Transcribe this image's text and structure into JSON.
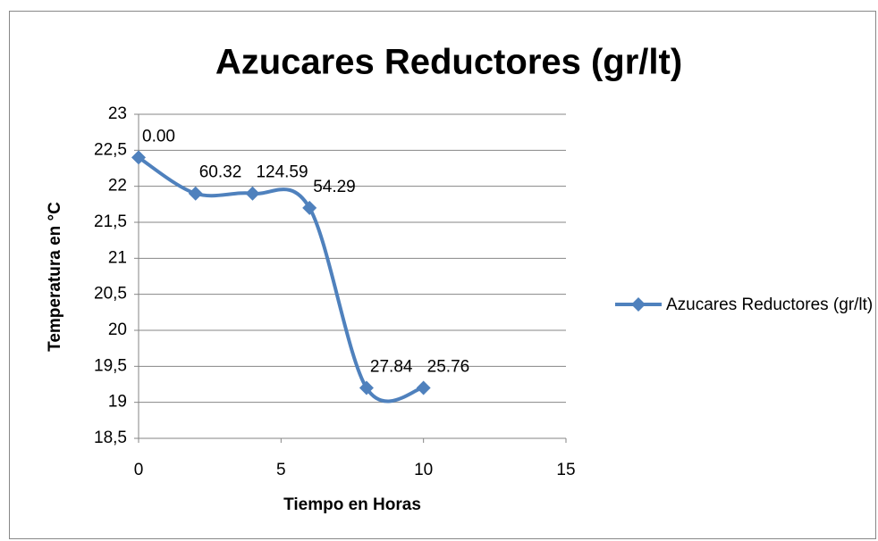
{
  "chart_data": {
    "type": "line",
    "title": "Azucares Reductores (gr/lt)",
    "x_label": "Tiempo en Horas",
    "y_label": "Temperatura en °C",
    "x": [
      0,
      2,
      4,
      6,
      8,
      10
    ],
    "series": [
      {
        "name": "Azucares Reductores (gr/lt)",
        "color": "#4f81bd",
        "values": [
          22.4,
          21.9,
          21.9,
          21.7,
          19.2,
          19.2
        ],
        "data_labels": [
          "0.00",
          "60.32",
          "124.59",
          "54.29",
          "27.84",
          "25.76"
        ]
      }
    ],
    "xlim": [
      0,
      15
    ],
    "xticks": [
      0,
      5,
      10,
      15
    ],
    "ylim": [
      18.5,
      23
    ],
    "yticks": [
      {
        "value": 18.5,
        "label": "18,5"
      },
      19,
      {
        "value": 19.5,
        "label": "19,5"
      },
      20,
      {
        "value": 20.5,
        "label": "20,5"
      },
      21,
      {
        "value": 21.5,
        "label": "21,5"
      },
      22,
      {
        "value": 22.5,
        "label": "22,5"
      },
      23
    ],
    "grid": true,
    "smooth": true,
    "legend": "right"
  }
}
